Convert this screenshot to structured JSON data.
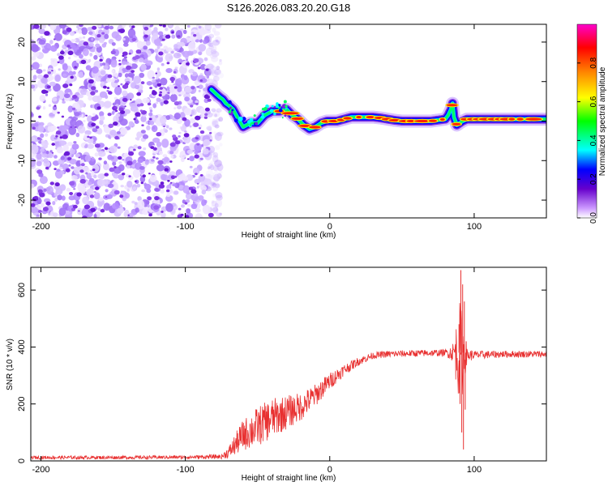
{
  "figure": {
    "title": "S126.2026.083.20.20.G18"
  },
  "chart_data": [
    {
      "type": "heatmap",
      "title": "S126.2026.083.20.20.G18",
      "xlabel": "Height of straight line (km)",
      "ylabel": "Frequency (Hz)",
      "xlim": [
        -207,
        150
      ],
      "ylim": [
        -24.5,
        24.5
      ],
      "x_ticks": [
        -200,
        -100,
        0,
        100
      ],
      "x_tick_labels": [
        "-200",
        "-100",
        "0",
        "100"
      ],
      "y_ticks": [
        -20,
        -10,
        0,
        10,
        20
      ],
      "y_tick_labels": [
        "-20",
        "-10",
        "0",
        "10",
        "20"
      ],
      "noise_region_x": [
        -207,
        -82
      ],
      "signal_onset_x": -82,
      "ridge": {
        "x": [
          -82,
          -79,
          -76,
          -74,
          -72,
          -70,
          -67,
          -64,
          -60,
          -55,
          -50,
          -45,
          -40,
          -35,
          -30,
          -26,
          -22,
          -18,
          -14,
          -10,
          -6,
          -2,
          0,
          5,
          10,
          15,
          20,
          25,
          30,
          35,
          40,
          45,
          50,
          60,
          70,
          80,
          82,
          84,
          85,
          86,
          88,
          90,
          92,
          95,
          100,
          110,
          120,
          130,
          140,
          150
        ],
        "freq": [
          8,
          7,
          6,
          5.5,
          4.5,
          4,
          3,
          1,
          -1.5,
          -0.5,
          -0.5,
          1.5,
          2.5,
          2.5,
          3,
          1.5,
          0.5,
          -1,
          -2,
          -1.5,
          -0.5,
          0,
          0,
          0,
          0.5,
          1,
          1,
          1,
          1,
          0.8,
          0.5,
          0.2,
          0,
          0,
          0,
          0.5,
          1.5,
          3,
          4.5,
          1,
          -1,
          -0.5,
          0,
          0.5,
          0.5,
          0.5,
          0.5,
          0.5,
          0.5,
          0.5
        ]
      },
      "colorbar": {
        "label": "Normalized spectral amplitude",
        "range": [
          0,
          1
        ],
        "ticks": [
          0,
          0.2,
          0.4,
          0.6,
          0.8
        ],
        "tick_labels": [
          "0.0",
          "0.2",
          "0.4",
          "0.6",
          "0.8"
        ],
        "colors": [
          "#ffffff",
          "#cc99ff",
          "#6600cc",
          "#0000ff",
          "#00ffff",
          "#00ff00",
          "#ffff00",
          "#ff8800",
          "#ff0000",
          "#ff00cc"
        ]
      }
    },
    {
      "type": "line",
      "xlabel": "Height of straight line (km)",
      "ylabel": "SNR (10 * v/v)",
      "xlim": [
        -207,
        150
      ],
      "ylim": [
        0,
        680
      ],
      "x_ticks": [
        -200,
        -100,
        0,
        100
      ],
      "x_tick_labels": [
        "-200",
        "-100",
        "0",
        "100"
      ],
      "y_ticks": [
        0,
        200,
        400,
        600
      ],
      "y_tick_labels": [
        "0",
        "200",
        "400",
        "600"
      ],
      "color": "#e83030",
      "envelope": {
        "x": [
          -207,
          -150,
          -100,
          -75,
          -70,
          -65,
          -60,
          -50,
          -40,
          -30,
          -20,
          -10,
          0,
          10,
          20,
          30,
          40,
          60,
          80,
          85,
          88,
          90,
          92,
          95,
          100,
          120,
          150
        ],
        "mean": [
          12,
          12,
          13,
          15,
          30,
          60,
          90,
          120,
          150,
          170,
          190,
          230,
          280,
          320,
          350,
          370,
          375,
          378,
          380,
          380,
          380,
          380,
          375,
          370,
          372,
          375,
          375
        ],
        "amp": [
          6,
          6,
          6,
          8,
          20,
          40,
          55,
          70,
          70,
          60,
          50,
          40,
          30,
          20,
          15,
          12,
          12,
          12,
          12,
          30,
          120,
          180,
          140,
          25,
          15,
          12,
          12
        ]
      },
      "spikes": [
        {
          "x": 89.5,
          "y": 480
        },
        {
          "x": 90.2,
          "y": 200
        },
        {
          "x": 90.8,
          "y": 670
        },
        {
          "x": 91.4,
          "y": 100
        },
        {
          "x": 92.0,
          "y": 620
        },
        {
          "x": 92.6,
          "y": 40
        },
        {
          "x": 93.2,
          "y": 560
        },
        {
          "x": 93.8,
          "y": 180
        },
        {
          "x": 94.5,
          "y": 420
        }
      ]
    }
  ]
}
